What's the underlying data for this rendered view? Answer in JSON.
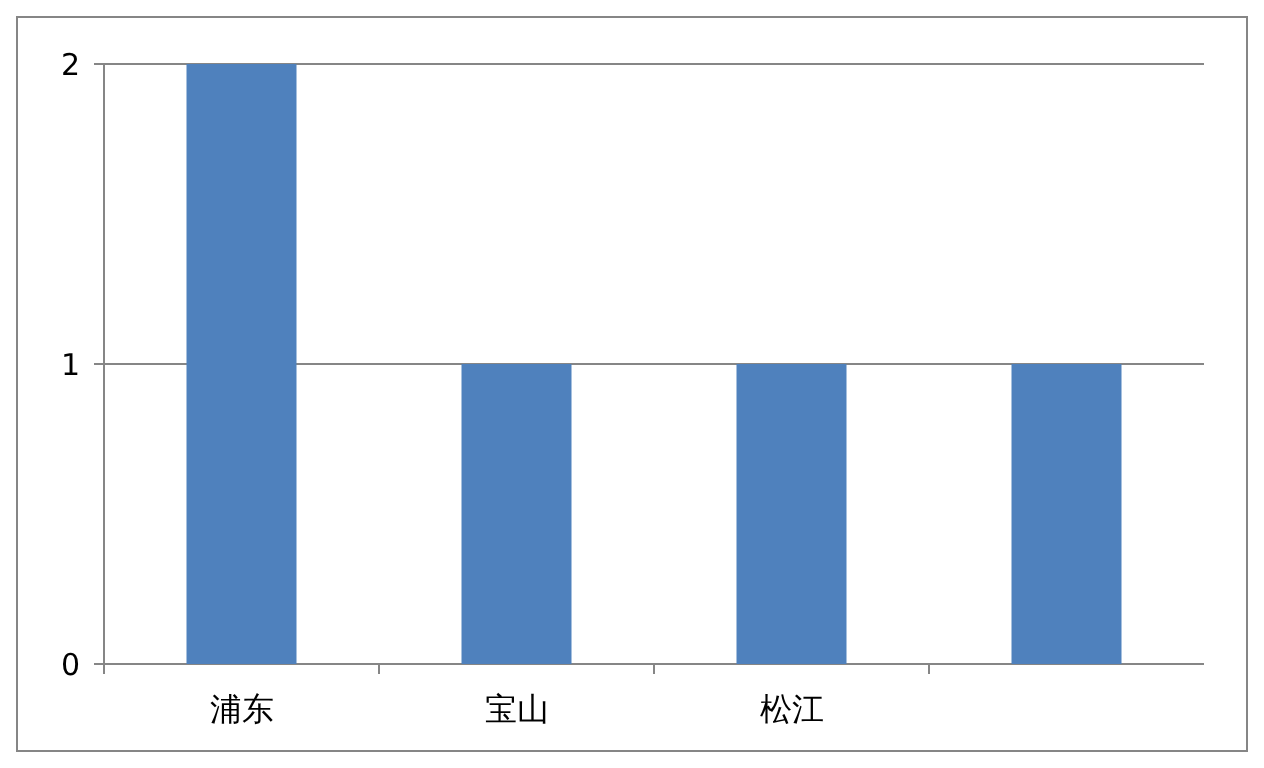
{
  "chart_data": {
    "type": "bar",
    "categories": [
      "浦东",
      "宝山",
      "松江",
      null
    ],
    "values": [
      2,
      1,
      1,
      1
    ],
    "color": "#4f81bd",
    "ylim": [
      0,
      2
    ],
    "yticks": [
      0,
      1,
      2
    ],
    "grid": "y"
  }
}
